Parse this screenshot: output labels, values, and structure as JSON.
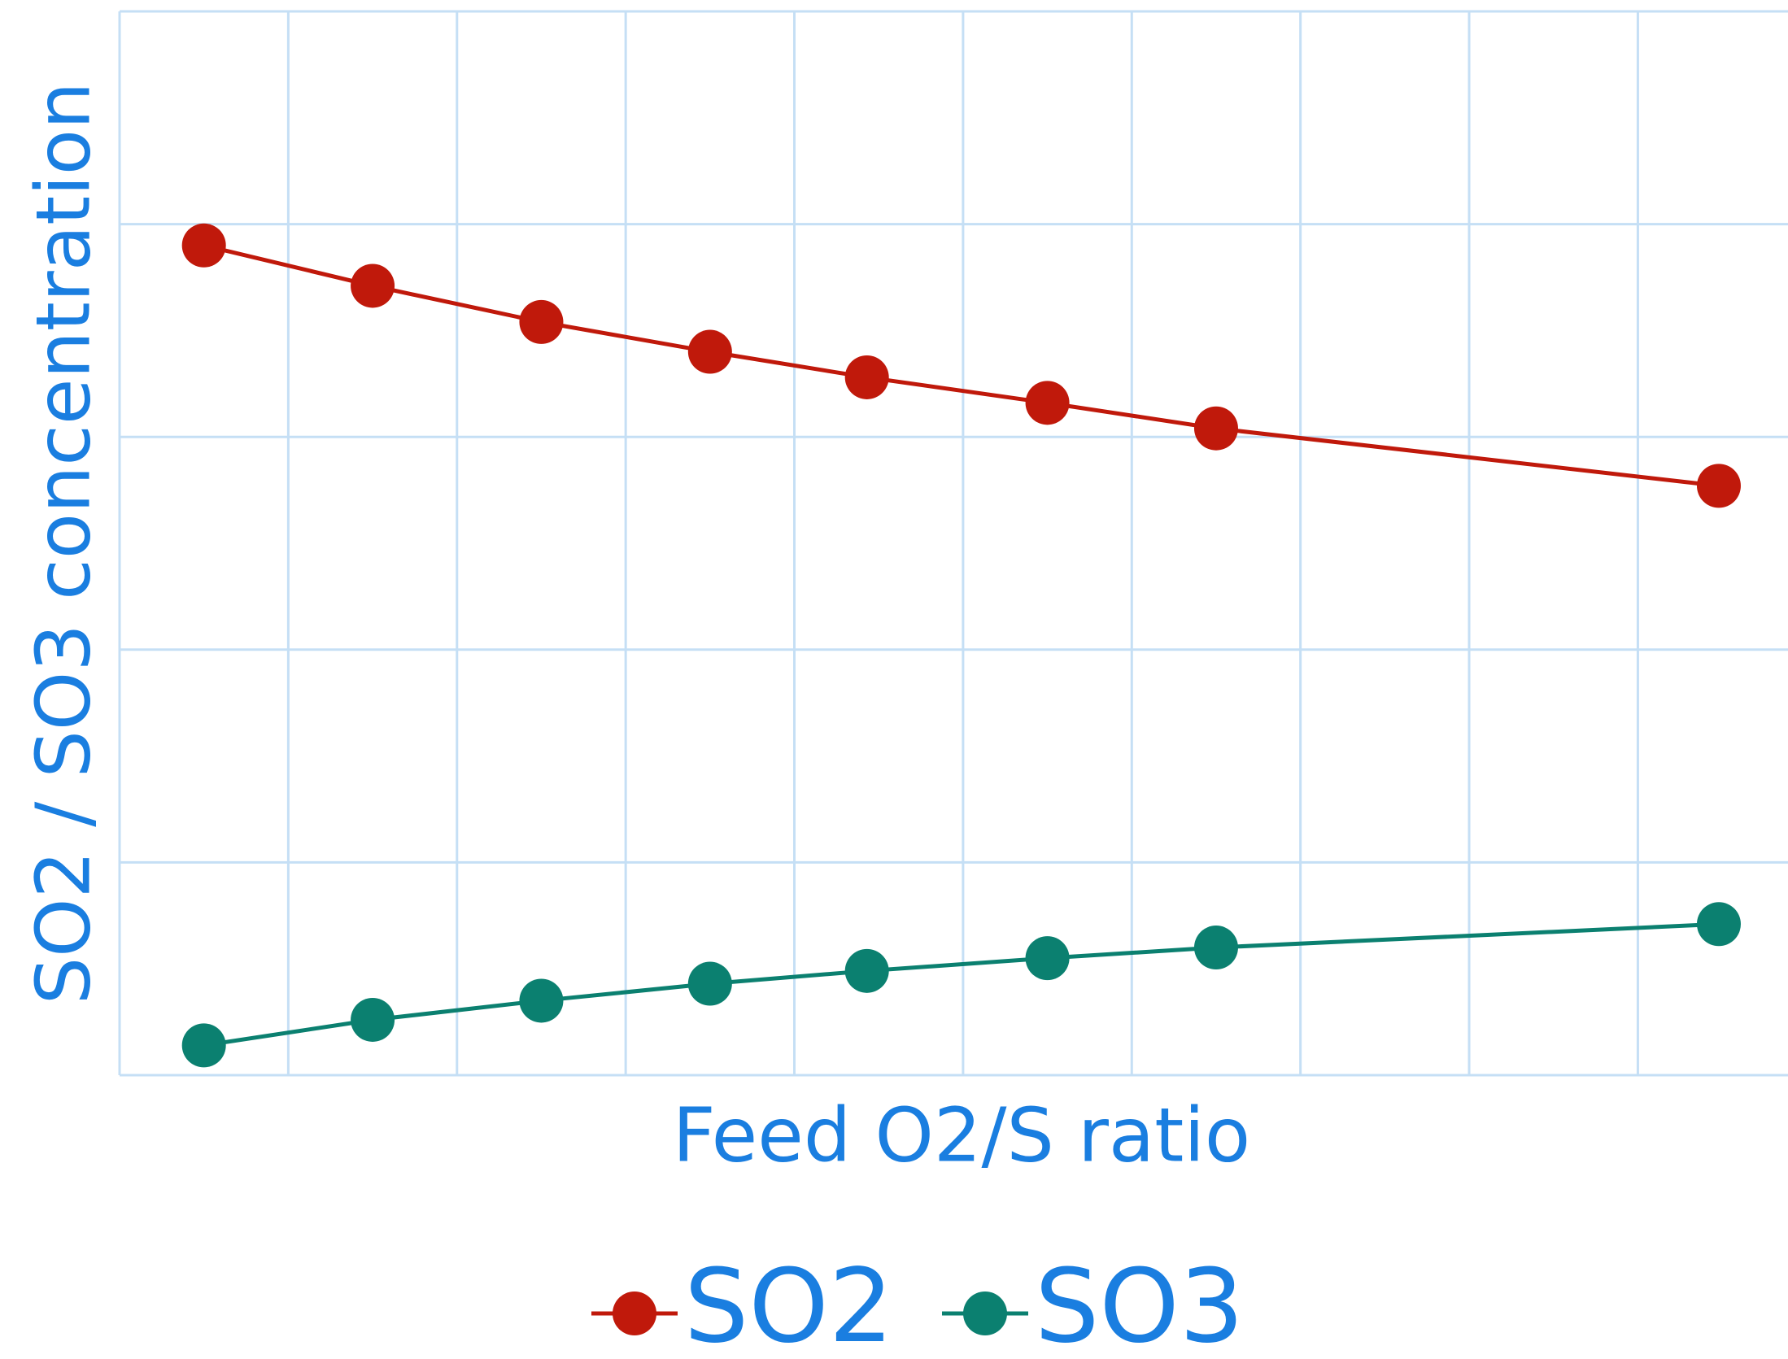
{
  "chart_data": {
    "type": "line",
    "x_label": "Feed O2/S ratio",
    "y_label": "SO2 / SO3 concentration",
    "xlim": [
      0,
      9.89
    ],
    "xticks": [
      0,
      1,
      2,
      3,
      4,
      5,
      6,
      7,
      8,
      9
    ],
    "ylim": [
      0,
      5
    ],
    "yticks": [
      0,
      1,
      2,
      3,
      4,
      5
    ],
    "grid": true,
    "grid_color": "#c5dff5",
    "text_color": "#1a7ee0",
    "legend": "bottom",
    "series": [
      {
        "name": "SO2",
        "color": "#c0190b",
        "x": [
          0.5,
          1.5,
          2.5,
          3.5,
          4.43,
          5.5,
          6.5,
          9.48
        ],
        "values": [
          3.9,
          3.71,
          3.54,
          3.4,
          3.28,
          3.16,
          3.04,
          2.77
        ]
      },
      {
        "name": "SO3",
        "color": "#0b8070",
        "x": [
          0.5,
          1.5,
          2.5,
          3.5,
          4.43,
          5.5,
          6.5,
          9.48
        ],
        "values": [
          0.14,
          0.26,
          0.35,
          0.43,
          0.49,
          0.55,
          0.6,
          0.71
        ]
      }
    ]
  }
}
